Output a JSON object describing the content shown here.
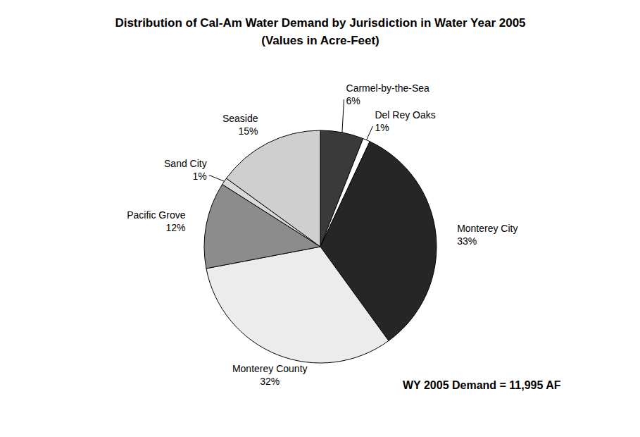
{
  "chart_data": {
    "type": "pie",
    "title": "Distribution of Cal-Am Water Demand by Jurisdiction in Water Year 2005",
    "subtitle": "(Values in Acre-Feet)",
    "annotations": [
      "WY 2005 Demand = 11,995 AF"
    ],
    "categories": [
      "Carmel-by-the-Sea",
      "Del Rey Oaks",
      "Monterey City",
      "Monterey County",
      "Pacific Grove",
      "Sand City",
      "Seaside"
    ],
    "values": [
      6,
      1,
      33,
      32,
      12,
      1,
      15
    ],
    "value_labels": [
      "6%",
      "1%",
      "33%",
      "32%",
      "12%",
      "1%",
      "15%"
    ],
    "colors": [
      "#3a3a3a",
      "#ffffff",
      "#262626",
      "#ececec",
      "#8c8c8c",
      "#d9d9d9",
      "#cfcfcf"
    ],
    "data_labels": true
  }
}
